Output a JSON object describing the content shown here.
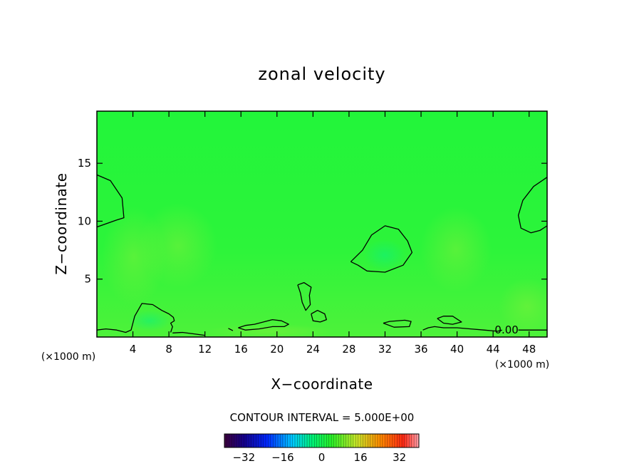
{
  "chart_data": {
    "type": "heatmap",
    "title": "zonal velocity",
    "xlabel": "X−coordinate",
    "ylabel": "Z−coordinate",
    "x_unit": "(×1000 m)",
    "x_unit_right": "(×1000 m)",
    "xlim": [
      0,
      50
    ],
    "ylim": [
      0,
      19.5
    ],
    "x_ticks": [
      4,
      8,
      12,
      16,
      20,
      24,
      28,
      32,
      36,
      40,
      44,
      48
    ],
    "x_tick_labels": [
      "4",
      "8",
      "12",
      "16",
      "20",
      "24",
      "28",
      "32",
      "36",
      "40",
      "44",
      "48"
    ],
    "y_ticks": [
      5,
      10,
      15
    ],
    "y_tick_labels": [
      "5",
      "10",
      "15"
    ],
    "contour_label": "0.00",
    "contour_label_pos": [
      45.5,
      0.6
    ],
    "contour_interval_text": "CONTOUR INTERVAL = 5.000E+00",
    "colorbar": {
      "min": -40,
      "max": 40,
      "ticks": [
        -32,
        -16,
        0,
        16,
        32
      ],
      "tick_labels": [
        "−32",
        "−16",
        "0",
        "16",
        "32"
      ]
    },
    "zero_contours": [
      [
        [
          0,
          14
        ],
        [
          1.5,
          13.5
        ],
        [
          2.8,
          12
        ],
        [
          3,
          10.3
        ],
        [
          2.2,
          10.1
        ],
        [
          0,
          9.5
        ]
      ],
      [
        [
          28.2,
          6.5
        ],
        [
          29.5,
          7.5
        ],
        [
          30.5,
          8.8
        ],
        [
          32,
          9.6
        ],
        [
          33.5,
          9.3
        ],
        [
          34.5,
          8.3
        ],
        [
          35,
          7.3
        ],
        [
          34,
          6.2
        ],
        [
          32,
          5.6
        ],
        [
          30,
          5.7
        ],
        [
          29,
          6.2
        ],
        [
          28.2,
          6.5
        ]
      ],
      [
        [
          22.3,
          4.5
        ],
        [
          23,
          4.7
        ],
        [
          23.8,
          4.3
        ],
        [
          23.6,
          3.6
        ],
        [
          23.7,
          2.8
        ],
        [
          23.2,
          2.3
        ],
        [
          22.8,
          3.0
        ],
        [
          22.6,
          3.8
        ],
        [
          22.3,
          4.5
        ]
      ],
      [
        [
          23.8,
          2.0
        ],
        [
          24.5,
          2.3
        ],
        [
          25.3,
          2.0
        ],
        [
          25.5,
          1.5
        ],
        [
          24.8,
          1.3
        ],
        [
          24,
          1.4
        ],
        [
          23.8,
          2.0
        ]
      ],
      [
        [
          0,
          0.6
        ],
        [
          1,
          0.7
        ],
        [
          2.2,
          0.6
        ],
        [
          3.2,
          0.4
        ],
        [
          3.8,
          0.6
        ],
        [
          4.2,
          1.8
        ],
        [
          5,
          2.9
        ],
        [
          6.2,
          2.8
        ],
        [
          7.2,
          2.3
        ],
        [
          8,
          2.0
        ],
        [
          8.5,
          1.7
        ],
        [
          8.6,
          1.4
        ],
        [
          8.2,
          1.2
        ],
        [
          8.4,
          0.9
        ],
        [
          8.2,
          0.4
        ]
      ],
      [
        [
          8.4,
          0.35
        ],
        [
          9.5,
          0.4
        ],
        [
          10.5,
          0.3
        ],
        [
          12,
          0.15
        ]
      ],
      [
        [
          14.6,
          0.75
        ],
        [
          15.1,
          0.55
        ]
      ],
      [
        [
          15.7,
          0.8
        ],
        [
          16.5,
          1.0
        ],
        [
          17.5,
          1.1
        ],
        [
          18.5,
          1.3
        ],
        [
          19.5,
          1.5
        ],
        [
          20.5,
          1.4
        ],
        [
          21.3,
          1.1
        ],
        [
          20.8,
          0.9
        ],
        [
          19.5,
          0.9
        ],
        [
          18,
          0.7
        ],
        [
          16.5,
          0.6
        ],
        [
          15.7,
          0.8
        ]
      ],
      [
        [
          31.8,
          1.2
        ],
        [
          32.5,
          1.35
        ],
        [
          34.2,
          1.45
        ],
        [
          34.9,
          1.35
        ],
        [
          34.7,
          0.9
        ],
        [
          33,
          0.85
        ],
        [
          31.8,
          1.2
        ]
      ],
      [
        [
          36.2,
          0.6
        ],
        [
          36.8,
          0.8
        ],
        [
          37.5,
          0.9
        ],
        [
          38.5,
          0.8
        ],
        [
          40,
          0.8
        ],
        [
          41.5,
          0.7
        ],
        [
          43,
          0.6
        ],
        [
          44.5,
          0.5
        ],
        [
          45,
          0.6
        ]
      ],
      [
        [
          46.8,
          0.6
        ],
        [
          48,
          0.6
        ],
        [
          50,
          0.6
        ]
      ],
      [
        [
          37.8,
          1.6
        ],
        [
          38.5,
          1.8
        ],
        [
          39.5,
          1.8
        ],
        [
          40.5,
          1.3
        ],
        [
          39.5,
          1.1
        ],
        [
          38.5,
          1.2
        ],
        [
          37.8,
          1.6
        ]
      ],
      [
        [
          50,
          13.8
        ],
        [
          48.5,
          13
        ],
        [
          47.3,
          11.8
        ],
        [
          46.8,
          10.5
        ],
        [
          47.1,
          9.4
        ],
        [
          48.2,
          9.0
        ],
        [
          49.2,
          9.2
        ],
        [
          50,
          9.6
        ]
      ]
    ]
  }
}
